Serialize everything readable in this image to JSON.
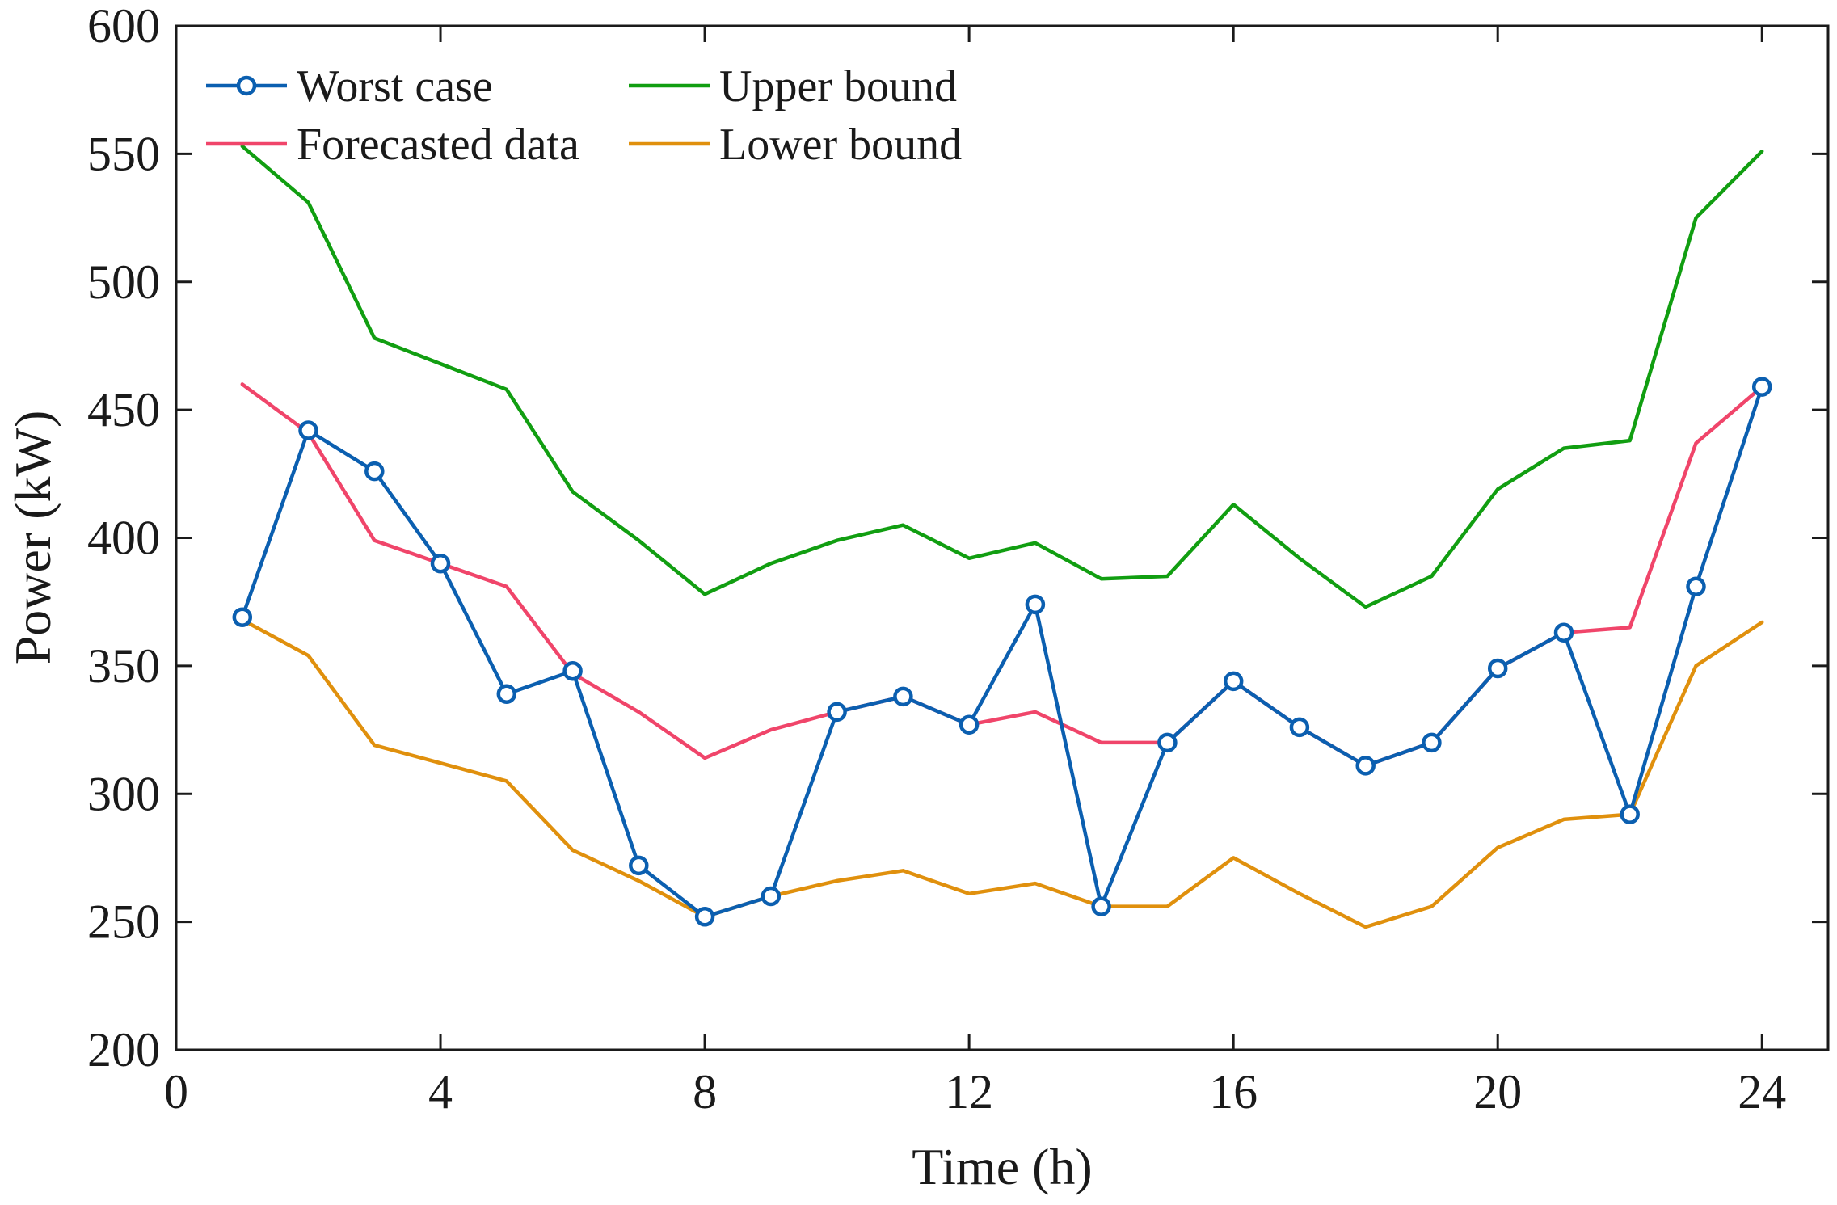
{
  "chart_data": {
    "type": "line",
    "xlabel": "Time (h)",
    "ylabel": "Power (kW)",
    "xlim": [
      0,
      25
    ],
    "ylim": [
      200,
      600
    ],
    "xticks": [
      0,
      4,
      8,
      12,
      16,
      20,
      24
    ],
    "yticks": [
      200,
      250,
      300,
      350,
      400,
      450,
      500,
      550,
      600
    ],
    "grid": false,
    "legend_position": "top-left",
    "x": [
      1,
      2,
      3,
      4,
      5,
      6,
      7,
      8,
      9,
      10,
      11,
      12,
      13,
      14,
      15,
      16,
      17,
      18,
      19,
      20,
      21,
      22,
      23,
      24
    ],
    "series": [
      {
        "name": "Worst case",
        "color": "#0b5fb0",
        "marker": "circle",
        "values": [
          369,
          442,
          426,
          390,
          339,
          348,
          272,
          252,
          260,
          332,
          338,
          327,
          374,
          256,
          320,
          344,
          326,
          311,
          320,
          349,
          363,
          292,
          381,
          459
        ]
      },
      {
        "name": "Forecasted data",
        "color": "#f0456a",
        "marker": "none",
        "values": [
          460,
          441,
          399,
          390,
          381,
          347,
          332,
          314,
          325,
          332,
          338,
          327,
          332,
          320,
          320,
          344,
          326,
          311,
          320,
          349,
          363,
          365,
          437,
          459
        ]
      },
      {
        "name": "Upper bound",
        "color": "#119e11",
        "marker": "none",
        "values": [
          553,
          531,
          478,
          468,
          458,
          418,
          399,
          378,
          390,
          399,
          405,
          392,
          398,
          384,
          385,
          413,
          392,
          373,
          385,
          419,
          435,
          438,
          525,
          551
        ]
      },
      {
        "name": "Lower bound",
        "color": "#e0900d",
        "marker": "none",
        "values": [
          368,
          354,
          319,
          312,
          305,
          278,
          266,
          252,
          260,
          266,
          270,
          261,
          265,
          256,
          256,
          275,
          261,
          248,
          256,
          279,
          290,
          292,
          350,
          367
        ]
      }
    ]
  }
}
